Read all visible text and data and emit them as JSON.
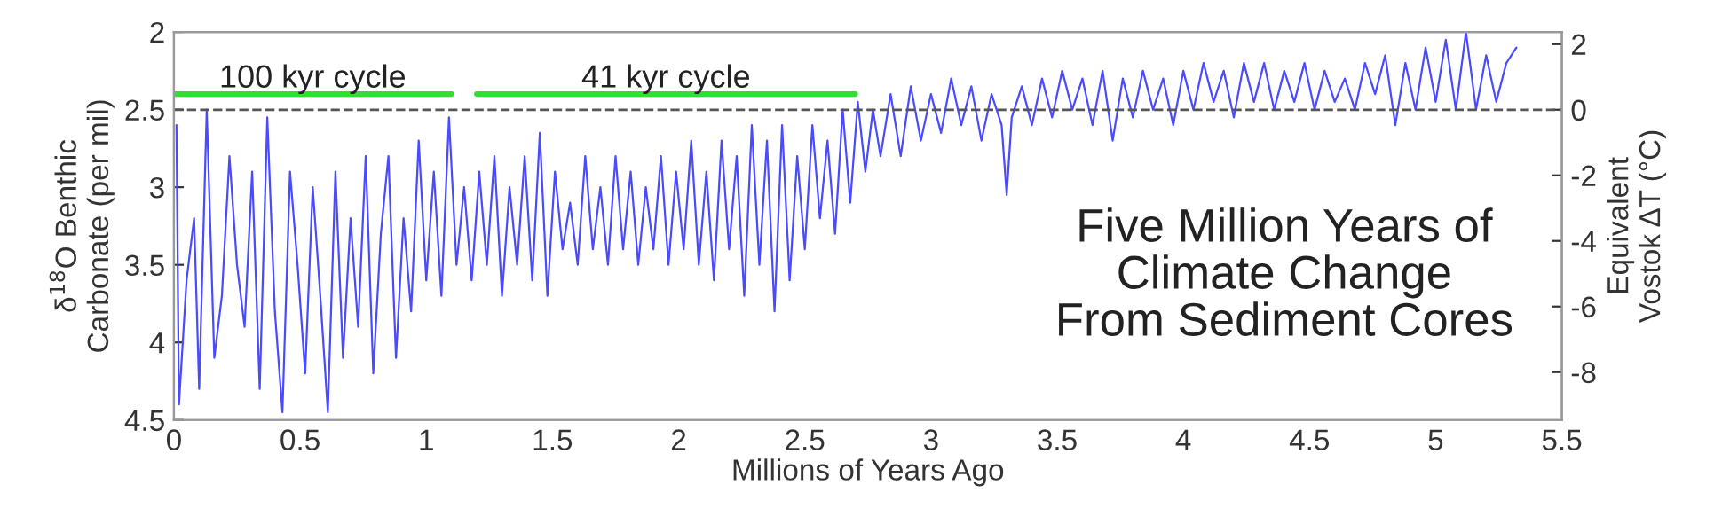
{
  "chart_data": {
    "type": "line",
    "xlabel": "Millions of Years Ago",
    "ylabel": "δ$^{18}$O Benthic\nCarbonate (per mil)",
    "y2label": "Equivalent\nVostok ΔT (°C)",
    "xlim": [
      0,
      5.5
    ],
    "xticks": [
      0,
      0.5,
      1,
      1.5,
      2,
      2.5,
      3,
      3.5,
      4,
      4.5,
      5,
      5.5
    ],
    "ylim": [
      4.5,
      2
    ],
    "yticks": [
      2,
      2.5,
      3,
      3.5,
      4,
      4.5
    ],
    "y2lim": [
      -9.46,
      2.37
    ],
    "y2ticks": [
      -8,
      -6,
      -4,
      -2,
      0,
      2
    ],
    "grid": false,
    "legend": false,
    "marker": "none",
    "line_style": "solid",
    "series": [
      {
        "color": "#4a4aff",
        "x": [
          0.01,
          0.02,
          0.05,
          0.08,
          0.1,
          0.13,
          0.16,
          0.19,
          0.22,
          0.25,
          0.28,
          0.31,
          0.34,
          0.37,
          0.4,
          0.43,
          0.46,
          0.49,
          0.52,
          0.55,
          0.58,
          0.61,
          0.64,
          0.67,
          0.7,
          0.73,
          0.76,
          0.79,
          0.82,
          0.85,
          0.88,
          0.91,
          0.94,
          0.97,
          1.0,
          1.03,
          1.06,
          1.09,
          1.12,
          1.15,
          1.18,
          1.21,
          1.24,
          1.27,
          1.3,
          1.33,
          1.36,
          1.39,
          1.42,
          1.45,
          1.48,
          1.51,
          1.54,
          1.57,
          1.6,
          1.63,
          1.66,
          1.69,
          1.72,
          1.75,
          1.78,
          1.81,
          1.84,
          1.87,
          1.9,
          1.93,
          1.96,
          1.99,
          2.02,
          2.05,
          2.08,
          2.11,
          2.14,
          2.17,
          2.2,
          2.23,
          2.26,
          2.29,
          2.32,
          2.35,
          2.38,
          2.41,
          2.44,
          2.47,
          2.5,
          2.53,
          2.56,
          2.59,
          2.62,
          2.65,
          2.68,
          2.71,
          2.74,
          2.77,
          2.8,
          2.84,
          2.88,
          2.92,
          2.96,
          3.0,
          3.04,
          3.08,
          3.12,
          3.16,
          3.2,
          3.24,
          3.28,
          3.3,
          3.32,
          3.36,
          3.4,
          3.44,
          3.48,
          3.52,
          3.56,
          3.6,
          3.64,
          3.68,
          3.72,
          3.76,
          3.8,
          3.84,
          3.88,
          3.92,
          3.96,
          4.0,
          4.04,
          4.08,
          4.12,
          4.16,
          4.2,
          4.24,
          4.28,
          4.32,
          4.36,
          4.4,
          4.44,
          4.48,
          4.52,
          4.56,
          4.6,
          4.64,
          4.68,
          4.72,
          4.76,
          4.8,
          4.84,
          4.88,
          4.92,
          4.96,
          5.0,
          5.04,
          5.08,
          5.12,
          5.16,
          5.2,
          5.24,
          5.28,
          5.32
        ],
        "values": [
          2.6,
          4.4,
          3.6,
          3.2,
          4.3,
          2.5,
          4.1,
          3.7,
          2.8,
          3.5,
          3.9,
          2.9,
          4.3,
          2.55,
          3.8,
          4.45,
          2.9,
          3.5,
          4.2,
          3.0,
          3.7,
          4.45,
          2.9,
          4.1,
          3.2,
          3.9,
          2.8,
          4.2,
          3.3,
          2.8,
          4.1,
          3.2,
          3.8,
          2.7,
          3.6,
          2.9,
          3.7,
          2.55,
          3.5,
          3.0,
          3.6,
          2.9,
          3.5,
          2.8,
          3.7,
          3.0,
          3.5,
          2.8,
          3.6,
          2.65,
          3.7,
          2.9,
          3.4,
          3.1,
          3.5,
          2.8,
          3.4,
          3.0,
          3.5,
          2.8,
          3.4,
          2.9,
          3.5,
          3.0,
          3.4,
          2.8,
          3.5,
          2.9,
          3.4,
          2.7,
          3.5,
          2.9,
          3.6,
          2.7,
          3.4,
          2.8,
          3.7,
          2.6,
          3.5,
          2.7,
          3.8,
          2.6,
          3.6,
          2.8,
          3.4,
          2.6,
          3.2,
          2.7,
          3.3,
          2.5,
          3.1,
          2.45,
          2.9,
          2.5,
          2.8,
          2.4,
          2.8,
          2.35,
          2.7,
          2.4,
          2.65,
          2.3,
          2.6,
          2.35,
          2.7,
          2.4,
          2.6,
          3.05,
          2.55,
          2.35,
          2.6,
          2.3,
          2.55,
          2.25,
          2.5,
          2.3,
          2.6,
          2.25,
          2.7,
          2.3,
          2.55,
          2.25,
          2.5,
          2.3,
          2.6,
          2.25,
          2.5,
          2.2,
          2.45,
          2.25,
          2.55,
          2.2,
          2.45,
          2.2,
          2.5,
          2.25,
          2.45,
          2.2,
          2.5,
          2.25,
          2.45,
          2.3,
          2.5,
          2.2,
          2.4,
          2.15,
          2.6,
          2.2,
          2.5,
          2.1,
          2.45,
          2.05,
          2.5,
          2.0,
          2.5,
          2.15,
          2.45,
          2.2,
          2.1
        ]
      },
      {
        "color": "#33dd33",
        "x": [
          0,
          1.1
        ],
        "values": [
          2.4,
          2.4
        ]
      },
      {
        "color": "#33dd33",
        "x": [
          1.2,
          2.7
        ],
        "values": [
          2.4,
          2.4
        ]
      }
    ],
    "ref_lines": [
      {
        "axis": "y2",
        "value": 0,
        "color": "#555555",
        "line_style": "dashed"
      }
    ],
    "annotations": [
      {
        "text": "100 kyr cycle",
        "x": 0.55,
        "y": 2.4
      },
      {
        "text": "41 kyr cycle",
        "x": 1.95,
        "y": 2.4
      },
      "Five Million Years of\nClimate Change\nFrom Sediment Cores"
    ]
  }
}
